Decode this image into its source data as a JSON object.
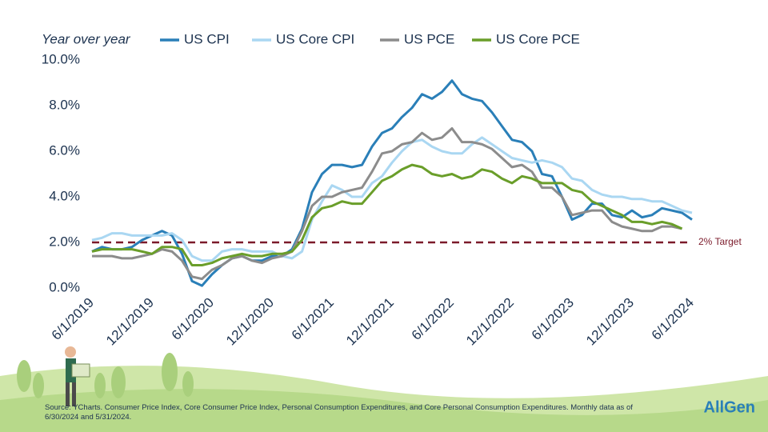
{
  "chart_data": {
    "type": "line",
    "legend_title": "Year over year",
    "categories": [
      "6/1/2019",
      null,
      null,
      null,
      null,
      null,
      "12/1/2019",
      null,
      null,
      null,
      null,
      null,
      "6/1/2020",
      null,
      null,
      null,
      null,
      null,
      "12/1/2020",
      null,
      null,
      null,
      null,
      null,
      "6/1/2021",
      null,
      null,
      null,
      null,
      null,
      "12/1/2021",
      null,
      null,
      null,
      null,
      null,
      "6/1/2022",
      null,
      null,
      null,
      null,
      null,
      "12/1/2022",
      null,
      null,
      null,
      null,
      null,
      "6/1/2023",
      null,
      null,
      null,
      null,
      null,
      "12/1/2023",
      null,
      null,
      null,
      null,
      null,
      "6/1/2024"
    ],
    "series": [
      {
        "name": "US CPI",
        "color": "#2a7fb8",
        "values": [
          1.6,
          1.8,
          1.7,
          1.7,
          1.8,
          2.1,
          2.3,
          2.5,
          2.3,
          1.5,
          0.3,
          0.1,
          0.6,
          1.0,
          1.3,
          1.4,
          1.2,
          1.2,
          1.4,
          1.4,
          1.7,
          2.6,
          4.2,
          5.0,
          5.4,
          5.4,
          5.3,
          5.4,
          6.2,
          6.8,
          7.0,
          7.5,
          7.9,
          8.5,
          8.3,
          8.6,
          9.1,
          8.5,
          8.3,
          8.2,
          7.7,
          7.1,
          6.5,
          6.4,
          6.0,
          5.0,
          4.9,
          4.0,
          3.0,
          3.2,
          3.7,
          3.7,
          3.2,
          3.1,
          3.4,
          3.1,
          3.2,
          3.5,
          3.4,
          3.3,
          3.0
        ]
      },
      {
        "name": "US Core CPI",
        "color": "#aad7f2",
        "values": [
          2.1,
          2.2,
          2.4,
          2.4,
          2.3,
          2.3,
          2.3,
          2.3,
          2.4,
          2.1,
          1.4,
          1.2,
          1.2,
          1.6,
          1.7,
          1.7,
          1.6,
          1.6,
          1.6,
          1.4,
          1.3,
          1.6,
          3.0,
          3.8,
          4.5,
          4.3,
          4.0,
          4.0,
          4.6,
          4.9,
          5.5,
          6.0,
          6.4,
          6.5,
          6.2,
          6.0,
          5.9,
          5.9,
          6.3,
          6.6,
          6.3,
          6.0,
          5.7,
          5.6,
          5.5,
          5.6,
          5.5,
          5.3,
          4.8,
          4.7,
          4.3,
          4.1,
          4.0,
          4.0,
          3.9,
          3.9,
          3.8,
          3.8,
          3.6,
          3.4,
          3.3
        ]
      },
      {
        "name": "US PCE",
        "color": "#8c8c8c",
        "values": [
          1.4,
          1.4,
          1.4,
          1.3,
          1.3,
          1.4,
          1.5,
          1.7,
          1.6,
          1.2,
          0.5,
          0.4,
          0.8,
          1.0,
          1.3,
          1.4,
          1.2,
          1.1,
          1.3,
          1.4,
          1.6,
          2.5,
          3.6,
          4.0,
          4.0,
          4.2,
          4.3,
          4.4,
          5.1,
          5.9,
          6.0,
          6.3,
          6.4,
          6.8,
          6.5,
          6.6,
          7.0,
          6.4,
          6.4,
          6.3,
          6.1,
          5.7,
          5.3,
          5.4,
          5.1,
          4.4,
          4.4,
          4.0,
          3.2,
          3.3,
          3.4,
          3.4,
          2.9,
          2.7,
          2.6,
          2.5,
          2.5,
          2.7,
          2.7,
          2.6,
          null
        ]
      },
      {
        "name": "US Core PCE",
        "color": "#6a9e2a",
        "values": [
          1.6,
          1.7,
          1.7,
          1.7,
          1.7,
          1.6,
          1.5,
          1.8,
          1.8,
          1.7,
          1.0,
          1.0,
          1.1,
          1.3,
          1.4,
          1.5,
          1.4,
          1.4,
          1.5,
          1.5,
          1.6,
          2.1,
          3.1,
          3.5,
          3.6,
          3.8,
          3.7,
          3.7,
          4.2,
          4.7,
          4.9,
          5.2,
          5.4,
          5.3,
          5.0,
          4.9,
          5.0,
          4.8,
          4.9,
          5.2,
          5.1,
          4.8,
          4.6,
          4.9,
          4.8,
          4.6,
          4.6,
          4.6,
          4.3,
          4.2,
          3.8,
          3.6,
          3.4,
          3.2,
          2.9,
          2.9,
          2.8,
          2.9,
          2.8,
          2.6,
          null
        ]
      }
    ],
    "ylim": [
      0,
      10
    ],
    "yticks": [
      {
        "value": 0,
        "label": "0.0%"
      },
      {
        "value": 2,
        "label": "2.0%"
      },
      {
        "value": 4,
        "label": "4.0%"
      },
      {
        "value": 6,
        "label": "6.0%"
      },
      {
        "value": 8,
        "label": "8.0%"
      },
      {
        "value": 10,
        "label": "10.0%"
      }
    ],
    "grid": false,
    "target": {
      "value": 2,
      "label": "2% Target",
      "color": "#7b1a2a"
    },
    "source": "Source: YCharts. Consumer Price Index, Core Consumer Price Index, Personal Consumption Expenditures, and Core Personal Consumption Expenditures. Monthly data as of 6/30/2024 and 5/31/2024.",
    "logo": "AllGen"
  }
}
